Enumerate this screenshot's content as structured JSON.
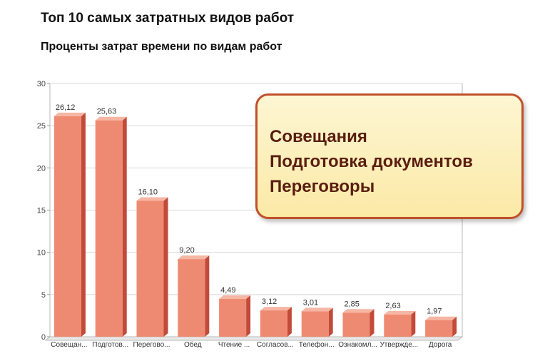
{
  "title": "Топ 10 самых затратных видов работ",
  "subtitle": "Проценты затрат времени по видам работ",
  "chart_data": {
    "type": "bar",
    "categories": [
      "Совещан...",
      "Подготов...",
      "Перегово...",
      "Обед",
      "Чтение ...",
      "Согласов...",
      "Телефон...",
      "Ознакомл...",
      "Утвержде...",
      "Дорога"
    ],
    "values": [
      26.12,
      25.63,
      16.1,
      9.2,
      4.49,
      3.12,
      3.01,
      2.85,
      2.63,
      1.97
    ],
    "data_labels": [
      "26,12",
      "25,63",
      "16,10",
      "9,20",
      "4,49",
      "3,12",
      "3,01",
      "2,85",
      "2,63",
      "1,97"
    ],
    "ylim": [
      0,
      30
    ],
    "yticks": [
      0,
      5,
      10,
      15,
      20,
      25,
      30
    ],
    "grid": true,
    "colors": {
      "front": "#ef8a72",
      "side": "#c24a38",
      "top": "#f6b6a4"
    }
  },
  "callout": {
    "lines": [
      "Совещания",
      "Подготовка документов",
      "Переговоры"
    ]
  }
}
